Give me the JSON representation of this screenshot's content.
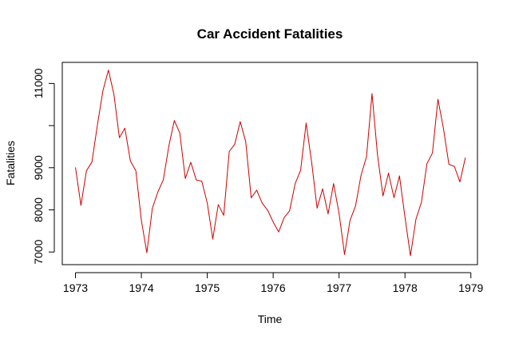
{
  "chart_data": {
    "type": "line",
    "title": "Car Accident Fatalities",
    "xlabel": "Time",
    "ylabel": "Fatalities",
    "xlim": [
      1972.8,
      1979.1
    ],
    "ylim": [
      6700,
      11500
    ],
    "x_ticks": [
      1973,
      1974,
      1975,
      1976,
      1977,
      1978,
      1979
    ],
    "x_tick_labels": [
      "1973",
      "1974",
      "1975",
      "1976",
      "1977",
      "1978",
      "1979"
    ],
    "y_ticks": [
      7000,
      8000,
      9000,
      11000
    ],
    "y_tick_labels": [
      "7000",
      "8000",
      "9000",
      "11000"
    ],
    "y_minor_ticks": [
      10000
    ],
    "x_start": 1973,
    "frequency": 12,
    "line_color": "#cc0000",
    "grid": false,
    "series": [
      {
        "name": "Fatalities",
        "values": [
          9007,
          8106,
          8928,
          9137,
          10017,
          10826,
          11317,
          10744,
          9713,
          9938,
          9161,
          8927,
          7750,
          6981,
          8038,
          8422,
          8714,
          9512,
          10120,
          9823,
          8743,
          9129,
          8710,
          8680,
          8162,
          7306,
          8124,
          7870,
          9387,
          9556,
          10093,
          9620,
          8285,
          8466,
          8160,
          7990,
          7711,
          7475,
          7815,
          7980,
          8620,
          8938,
          10060,
          9137,
          8040,
          8500,
          7905,
          8624,
          7915,
          6939,
          7751,
          8093,
          8821,
          9262,
          10761,
          9300,
          8329,
          8872,
          8288,
          8806,
          7826,
          6910,
          7781,
          8180,
          9096,
          9348,
          10625,
          9938,
          9080,
          9031,
          8662,
          9240
        ]
      }
    ]
  }
}
